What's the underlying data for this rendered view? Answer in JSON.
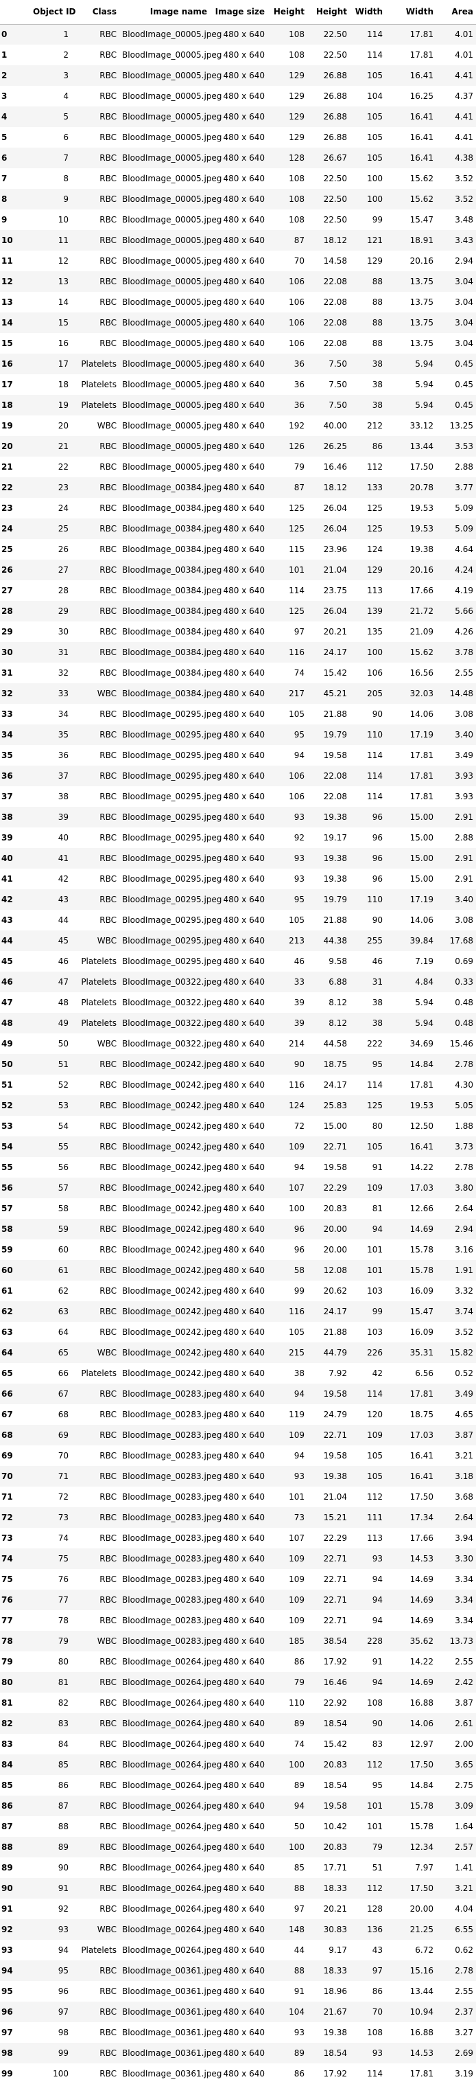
{
  "table": {
    "columns": [
      "",
      "Object ID",
      "Class",
      "Image name",
      "Image size",
      "Height",
      "Height",
      "Width",
      "Width",
      "Area"
    ],
    "rows": [
      [
        "0",
        "1",
        "RBC",
        "BloodImage_00005.jpeg",
        "480 x 640",
        "108",
        "22.50",
        "114",
        "17.81",
        "4.01"
      ],
      [
        "1",
        "2",
        "RBC",
        "BloodImage_00005.jpeg",
        "480 x 640",
        "108",
        "22.50",
        "114",
        "17.81",
        "4.01"
      ],
      [
        "2",
        "3",
        "RBC",
        "BloodImage_00005.jpeg",
        "480 x 640",
        "129",
        "26.88",
        "105",
        "16.41",
        "4.41"
      ],
      [
        "3",
        "4",
        "RBC",
        "BloodImage_00005.jpeg",
        "480 x 640",
        "129",
        "26.88",
        "104",
        "16.25",
        "4.37"
      ],
      [
        "4",
        "5",
        "RBC",
        "BloodImage_00005.jpeg",
        "480 x 640",
        "129",
        "26.88",
        "105",
        "16.41",
        "4.41"
      ],
      [
        "5",
        "6",
        "RBC",
        "BloodImage_00005.jpeg",
        "480 x 640",
        "129",
        "26.88",
        "105",
        "16.41",
        "4.41"
      ],
      [
        "6",
        "7",
        "RBC",
        "BloodImage_00005.jpeg",
        "480 x 640",
        "128",
        "26.67",
        "105",
        "16.41",
        "4.38"
      ],
      [
        "7",
        "8",
        "RBC",
        "BloodImage_00005.jpeg",
        "480 x 640",
        "108",
        "22.50",
        "100",
        "15.62",
        "3.52"
      ],
      [
        "8",
        "9",
        "RBC",
        "BloodImage_00005.jpeg",
        "480 x 640",
        "108",
        "22.50",
        "100",
        "15.62",
        "3.52"
      ],
      [
        "9",
        "10",
        "RBC",
        "BloodImage_00005.jpeg",
        "480 x 640",
        "108",
        "22.50",
        "99",
        "15.47",
        "3.48"
      ],
      [
        "10",
        "11",
        "RBC",
        "BloodImage_00005.jpeg",
        "480 x 640",
        "87",
        "18.12",
        "121",
        "18.91",
        "3.43"
      ],
      [
        "11",
        "12",
        "RBC",
        "BloodImage_00005.jpeg",
        "480 x 640",
        "70",
        "14.58",
        "129",
        "20.16",
        "2.94"
      ],
      [
        "12",
        "13",
        "RBC",
        "BloodImage_00005.jpeg",
        "480 x 640",
        "106",
        "22.08",
        "88",
        "13.75",
        "3.04"
      ],
      [
        "13",
        "14",
        "RBC",
        "BloodImage_00005.jpeg",
        "480 x 640",
        "106",
        "22.08",
        "88",
        "13.75",
        "3.04"
      ],
      [
        "14",
        "15",
        "RBC",
        "BloodImage_00005.jpeg",
        "480 x 640",
        "106",
        "22.08",
        "88",
        "13.75",
        "3.04"
      ],
      [
        "15",
        "16",
        "RBC",
        "BloodImage_00005.jpeg",
        "480 x 640",
        "106",
        "22.08",
        "88",
        "13.75",
        "3.04"
      ],
      [
        "16",
        "17",
        "Platelets",
        "BloodImage_00005.jpeg",
        "480 x 640",
        "36",
        "7.50",
        "38",
        "5.94",
        "0.45"
      ],
      [
        "17",
        "18",
        "Platelets",
        "BloodImage_00005.jpeg",
        "480 x 640",
        "36",
        "7.50",
        "38",
        "5.94",
        "0.45"
      ],
      [
        "18",
        "19",
        "Platelets",
        "BloodImage_00005.jpeg",
        "480 x 640",
        "36",
        "7.50",
        "38",
        "5.94",
        "0.45"
      ],
      [
        "19",
        "20",
        "WBC",
        "BloodImage_00005.jpeg",
        "480 x 640",
        "192",
        "40.00",
        "212",
        "33.12",
        "13.25"
      ],
      [
        "20",
        "21",
        "RBC",
        "BloodImage_00005.jpeg",
        "480 x 640",
        "126",
        "26.25",
        "86",
        "13.44",
        "3.53"
      ],
      [
        "21",
        "22",
        "RBC",
        "BloodImage_00005.jpeg",
        "480 x 640",
        "79",
        "16.46",
        "112",
        "17.50",
        "2.88"
      ],
      [
        "22",
        "23",
        "RBC",
        "BloodImage_00384.jpeg",
        "480 x 640",
        "87",
        "18.12",
        "133",
        "20.78",
        "3.77"
      ],
      [
        "23",
        "24",
        "RBC",
        "BloodImage_00384.jpeg",
        "480 x 640",
        "125",
        "26.04",
        "125",
        "19.53",
        "5.09"
      ],
      [
        "24",
        "25",
        "RBC",
        "BloodImage_00384.jpeg",
        "480 x 640",
        "125",
        "26.04",
        "125",
        "19.53",
        "5.09"
      ],
      [
        "25",
        "26",
        "RBC",
        "BloodImage_00384.jpeg",
        "480 x 640",
        "115",
        "23.96",
        "124",
        "19.38",
        "4.64"
      ],
      [
        "26",
        "27",
        "RBC",
        "BloodImage_00384.jpeg",
        "480 x 640",
        "101",
        "21.04",
        "129",
        "20.16",
        "4.24"
      ],
      [
        "27",
        "28",
        "RBC",
        "BloodImage_00384.jpeg",
        "480 x 640",
        "114",
        "23.75",
        "113",
        "17.66",
        "4.19"
      ],
      [
        "28",
        "29",
        "RBC",
        "BloodImage_00384.jpeg",
        "480 x 640",
        "125",
        "26.04",
        "139",
        "21.72",
        "5.66"
      ],
      [
        "29",
        "30",
        "RBC",
        "BloodImage_00384.jpeg",
        "480 x 640",
        "97",
        "20.21",
        "135",
        "21.09",
        "4.26"
      ],
      [
        "30",
        "31",
        "RBC",
        "BloodImage_00384.jpeg",
        "480 x 640",
        "116",
        "24.17",
        "100",
        "15.62",
        "3.78"
      ],
      [
        "31",
        "32",
        "RBC",
        "BloodImage_00384.jpeg",
        "480 x 640",
        "74",
        "15.42",
        "106",
        "16.56",
        "2.55"
      ],
      [
        "32",
        "33",
        "WBC",
        "BloodImage_00384.jpeg",
        "480 x 640",
        "217",
        "45.21",
        "205",
        "32.03",
        "14.48"
      ],
      [
        "33",
        "34",
        "RBC",
        "BloodImage_00295.jpeg",
        "480 x 640",
        "105",
        "21.88",
        "90",
        "14.06",
        "3.08"
      ],
      [
        "34",
        "35",
        "RBC",
        "BloodImage_00295.jpeg",
        "480 x 640",
        "95",
        "19.79",
        "110",
        "17.19",
        "3.40"
      ],
      [
        "35",
        "36",
        "RBC",
        "BloodImage_00295.jpeg",
        "480 x 640",
        "94",
        "19.58",
        "114",
        "17.81",
        "3.49"
      ],
      [
        "36",
        "37",
        "RBC",
        "BloodImage_00295.jpeg",
        "480 x 640",
        "106",
        "22.08",
        "114",
        "17.81",
        "3.93"
      ],
      [
        "37",
        "38",
        "RBC",
        "BloodImage_00295.jpeg",
        "480 x 640",
        "106",
        "22.08",
        "114",
        "17.81",
        "3.93"
      ],
      [
        "38",
        "39",
        "RBC",
        "BloodImage_00295.jpeg",
        "480 x 640",
        "93",
        "19.38",
        "96",
        "15.00",
        "2.91"
      ],
      [
        "39",
        "40",
        "RBC",
        "BloodImage_00295.jpeg",
        "480 x 640",
        "92",
        "19.17",
        "96",
        "15.00",
        "2.88"
      ],
      [
        "40",
        "41",
        "RBC",
        "BloodImage_00295.jpeg",
        "480 x 640",
        "93",
        "19.38",
        "96",
        "15.00",
        "2.91"
      ],
      [
        "41",
        "42",
        "RBC",
        "BloodImage_00295.jpeg",
        "480 x 640",
        "93",
        "19.38",
        "96",
        "15.00",
        "2.91"
      ],
      [
        "42",
        "43",
        "RBC",
        "BloodImage_00295.jpeg",
        "480 x 640",
        "95",
        "19.79",
        "110",
        "17.19",
        "3.40"
      ],
      [
        "43",
        "44",
        "RBC",
        "BloodImage_00295.jpeg",
        "480 x 640",
        "105",
        "21.88",
        "90",
        "14.06",
        "3.08"
      ],
      [
        "44",
        "45",
        "WBC",
        "BloodImage_00295.jpeg",
        "480 x 640",
        "213",
        "44.38",
        "255",
        "39.84",
        "17.68"
      ],
      [
        "45",
        "46",
        "Platelets",
        "BloodImage_00295.jpeg",
        "480 x 640",
        "46",
        "9.58",
        "46",
        "7.19",
        "0.69"
      ],
      [
        "46",
        "47",
        "Platelets",
        "BloodImage_00322.jpeg",
        "480 x 640",
        "33",
        "6.88",
        "31",
        "4.84",
        "0.33"
      ],
      [
        "47",
        "48",
        "Platelets",
        "BloodImage_00322.jpeg",
        "480 x 640",
        "39",
        "8.12",
        "38",
        "5.94",
        "0.48"
      ],
      [
        "48",
        "49",
        "Platelets",
        "BloodImage_00322.jpeg",
        "480 x 640",
        "39",
        "8.12",
        "38",
        "5.94",
        "0.48"
      ],
      [
        "49",
        "50",
        "WBC",
        "BloodImage_00322.jpeg",
        "480 x 640",
        "214",
        "44.58",
        "222",
        "34.69",
        "15.46"
      ],
      [
        "50",
        "51",
        "RBC",
        "BloodImage_00242.jpeg",
        "480 x 640",
        "90",
        "18.75",
        "95",
        "14.84",
        "2.78"
      ],
      [
        "51",
        "52",
        "RBC",
        "BloodImage_00242.jpeg",
        "480 x 640",
        "116",
        "24.17",
        "114",
        "17.81",
        "4.30"
      ],
      [
        "52",
        "53",
        "RBC",
        "BloodImage_00242.jpeg",
        "480 x 640",
        "124",
        "25.83",
        "125",
        "19.53",
        "5.05"
      ],
      [
        "53",
        "54",
        "RBC",
        "BloodImage_00242.jpeg",
        "480 x 640",
        "72",
        "15.00",
        "80",
        "12.50",
        "1.88"
      ],
      [
        "54",
        "55",
        "RBC",
        "BloodImage_00242.jpeg",
        "480 x 640",
        "109",
        "22.71",
        "105",
        "16.41",
        "3.73"
      ],
      [
        "55",
        "56",
        "RBC",
        "BloodImage_00242.jpeg",
        "480 x 640",
        "94",
        "19.58",
        "91",
        "14.22",
        "2.78"
      ],
      [
        "56",
        "57",
        "RBC",
        "BloodImage_00242.jpeg",
        "480 x 640",
        "107",
        "22.29",
        "109",
        "17.03",
        "3.80"
      ],
      [
        "57",
        "58",
        "RBC",
        "BloodImage_00242.jpeg",
        "480 x 640",
        "100",
        "20.83",
        "81",
        "12.66",
        "2.64"
      ],
      [
        "58",
        "59",
        "RBC",
        "BloodImage_00242.jpeg",
        "480 x 640",
        "96",
        "20.00",
        "94",
        "14.69",
        "2.94"
      ],
      [
        "59",
        "60",
        "RBC",
        "BloodImage_00242.jpeg",
        "480 x 640",
        "96",
        "20.00",
        "101",
        "15.78",
        "3.16"
      ],
      [
        "60",
        "61",
        "RBC",
        "BloodImage_00242.jpeg",
        "480 x 640",
        "58",
        "12.08",
        "101",
        "15.78",
        "1.91"
      ],
      [
        "61",
        "62",
        "RBC",
        "BloodImage_00242.jpeg",
        "480 x 640",
        "99",
        "20.62",
        "103",
        "16.09",
        "3.32"
      ],
      [
        "62",
        "63",
        "RBC",
        "BloodImage_00242.jpeg",
        "480 x 640",
        "116",
        "24.17",
        "99",
        "15.47",
        "3.74"
      ],
      [
        "63",
        "64",
        "RBC",
        "BloodImage_00242.jpeg",
        "480 x 640",
        "105",
        "21.88",
        "103",
        "16.09",
        "3.52"
      ],
      [
        "64",
        "65",
        "WBC",
        "BloodImage_00242.jpeg",
        "480 x 640",
        "215",
        "44.79",
        "226",
        "35.31",
        "15.82"
      ],
      [
        "65",
        "66",
        "Platelets",
        "BloodImage_00242.jpeg",
        "480 x 640",
        "38",
        "7.92",
        "42",
        "6.56",
        "0.52"
      ],
      [
        "66",
        "67",
        "RBC",
        "BloodImage_00283.jpeg",
        "480 x 640",
        "94",
        "19.58",
        "114",
        "17.81",
        "3.49"
      ],
      [
        "67",
        "68",
        "RBC",
        "BloodImage_00283.jpeg",
        "480 x 640",
        "119",
        "24.79",
        "120",
        "18.75",
        "4.65"
      ],
      [
        "68",
        "69",
        "RBC",
        "BloodImage_00283.jpeg",
        "480 x 640",
        "109",
        "22.71",
        "109",
        "17.03",
        "3.87"
      ],
      [
        "69",
        "70",
        "RBC",
        "BloodImage_00283.jpeg",
        "480 x 640",
        "94",
        "19.58",
        "105",
        "16.41",
        "3.21"
      ],
      [
        "70",
        "71",
        "RBC",
        "BloodImage_00283.jpeg",
        "480 x 640",
        "93",
        "19.38",
        "105",
        "16.41",
        "3.18"
      ],
      [
        "71",
        "72",
        "RBC",
        "BloodImage_00283.jpeg",
        "480 x 640",
        "101",
        "21.04",
        "112",
        "17.50",
        "3.68"
      ],
      [
        "72",
        "73",
        "RBC",
        "BloodImage_00283.jpeg",
        "480 x 640",
        "73",
        "15.21",
        "111",
        "17.34",
        "2.64"
      ],
      [
        "73",
        "74",
        "RBC",
        "BloodImage_00283.jpeg",
        "480 x 640",
        "107",
        "22.29",
        "113",
        "17.66",
        "3.94"
      ],
      [
        "74",
        "75",
        "RBC",
        "BloodImage_00283.jpeg",
        "480 x 640",
        "109",
        "22.71",
        "93",
        "14.53",
        "3.30"
      ],
      [
        "75",
        "76",
        "RBC",
        "BloodImage_00283.jpeg",
        "480 x 640",
        "109",
        "22.71",
        "94",
        "14.69",
        "3.34"
      ],
      [
        "76",
        "77",
        "RBC",
        "BloodImage_00283.jpeg",
        "480 x 640",
        "109",
        "22.71",
        "94",
        "14.69",
        "3.34"
      ],
      [
        "77",
        "78",
        "RBC",
        "BloodImage_00283.jpeg",
        "480 x 640",
        "109",
        "22.71",
        "94",
        "14.69",
        "3.34"
      ],
      [
        "78",
        "79",
        "WBC",
        "BloodImage_00283.jpeg",
        "480 x 640",
        "185",
        "38.54",
        "228",
        "35.62",
        "13.73"
      ],
      [
        "79",
        "80",
        "RBC",
        "BloodImage_00264.jpeg",
        "480 x 640",
        "86",
        "17.92",
        "91",
        "14.22",
        "2.55"
      ],
      [
        "80",
        "81",
        "RBC",
        "BloodImage_00264.jpeg",
        "480 x 640",
        "79",
        "16.46",
        "94",
        "14.69",
        "2.42"
      ],
      [
        "81",
        "82",
        "RBC",
        "BloodImage_00264.jpeg",
        "480 x 640",
        "110",
        "22.92",
        "108",
        "16.88",
        "3.87"
      ],
      [
        "82",
        "83",
        "RBC",
        "BloodImage_00264.jpeg",
        "480 x 640",
        "89",
        "18.54",
        "90",
        "14.06",
        "2.61"
      ],
      [
        "83",
        "84",
        "RBC",
        "BloodImage_00264.jpeg",
        "480 x 640",
        "74",
        "15.42",
        "83",
        "12.97",
        "2.00"
      ],
      [
        "84",
        "85",
        "RBC",
        "BloodImage_00264.jpeg",
        "480 x 640",
        "100",
        "20.83",
        "112",
        "17.50",
        "3.65"
      ],
      [
        "85",
        "86",
        "RBC",
        "BloodImage_00264.jpeg",
        "480 x 640",
        "89",
        "18.54",
        "95",
        "14.84",
        "2.75"
      ],
      [
        "86",
        "87",
        "RBC",
        "BloodImage_00264.jpeg",
        "480 x 640",
        "94",
        "19.58",
        "101",
        "15.78",
        "3.09"
      ],
      [
        "87",
        "88",
        "RBC",
        "BloodImage_00264.jpeg",
        "480 x 640",
        "50",
        "10.42",
        "101",
        "15.78",
        "1.64"
      ],
      [
        "88",
        "89",
        "RBC",
        "BloodImage_00264.jpeg",
        "480 x 640",
        "100",
        "20.83",
        "79",
        "12.34",
        "2.57"
      ],
      [
        "89",
        "90",
        "RBC",
        "BloodImage_00264.jpeg",
        "480 x 640",
        "85",
        "17.71",
        "51",
        "7.97",
        "1.41"
      ],
      [
        "90",
        "91",
        "RBC",
        "BloodImage_00264.jpeg",
        "480 x 640",
        "88",
        "18.33",
        "112",
        "17.50",
        "3.21"
      ],
      [
        "91",
        "92",
        "RBC",
        "BloodImage_00264.jpeg",
        "480 x 640",
        "97",
        "20.21",
        "128",
        "20.00",
        "4.04"
      ],
      [
        "92",
        "93",
        "WBC",
        "BloodImage_00264.jpeg",
        "480 x 640",
        "148",
        "30.83",
        "136",
        "21.25",
        "6.55"
      ],
      [
        "93",
        "94",
        "Platelets",
        "BloodImage_00264.jpeg",
        "480 x 640",
        "44",
        "9.17",
        "43",
        "6.72",
        "0.62"
      ],
      [
        "94",
        "95",
        "RBC",
        "BloodImage_00361.jpeg",
        "480 x 640",
        "88",
        "18.33",
        "97",
        "15.16",
        "2.78"
      ],
      [
        "95",
        "96",
        "RBC",
        "BloodImage_00361.jpeg",
        "480 x 640",
        "91",
        "18.96",
        "86",
        "13.44",
        "2.55"
      ],
      [
        "96",
        "97",
        "RBC",
        "BloodImage_00361.jpeg",
        "480 x 640",
        "104",
        "21.67",
        "70",
        "10.94",
        "2.37"
      ],
      [
        "97",
        "98",
        "RBC",
        "BloodImage_00361.jpeg",
        "480 x 640",
        "93",
        "19.38",
        "108",
        "16.88",
        "3.27"
      ],
      [
        "98",
        "99",
        "RBC",
        "BloodImage_00361.jpeg",
        "480 x 640",
        "89",
        "18.54",
        "93",
        "14.53",
        "2.69"
      ],
      [
        "99",
        "100",
        "RBC",
        "BloodImage_00361.jpeg",
        "480 x 640",
        "86",
        "17.92",
        "114",
        "17.81",
        "3.19"
      ]
    ]
  }
}
